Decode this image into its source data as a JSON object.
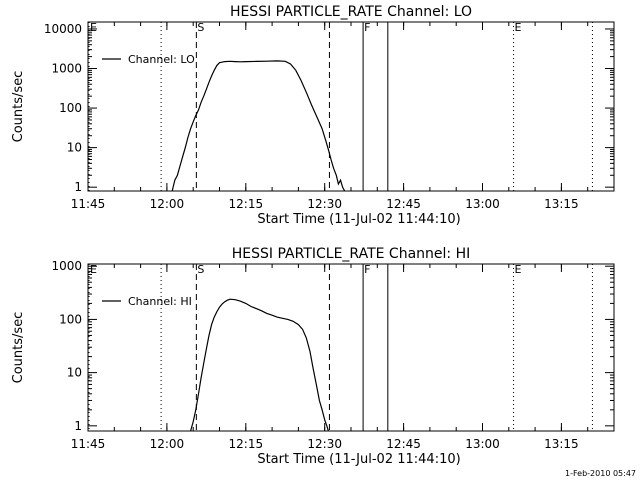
{
  "chart_data": [
    {
      "type": "line",
      "title": "HESSI PARTICLE_RATE Channel: LO",
      "xlabel": "Start Time (11-Jul-02 11:44:10)",
      "ylabel": "Counts/sec",
      "yscale": "log",
      "ylim": [
        0.8,
        15000
      ],
      "xlim": [
        705,
        805
      ],
      "x_unit": "minutes since 00:00 UT",
      "x_ticks": [
        {
          "v": 705,
          "label": "11:45"
        },
        {
          "v": 720,
          "label": "12:00"
        },
        {
          "v": 735,
          "label": "12:15"
        },
        {
          "v": 750,
          "label": "12:30"
        },
        {
          "v": 765,
          "label": "12:45"
        },
        {
          "v": 780,
          "label": "13:00"
        },
        {
          "v": 795,
          "label": "13:15"
        }
      ],
      "y_ticks": [
        {
          "v": 1,
          "label": "1"
        },
        {
          "v": 10,
          "label": "10"
        },
        {
          "v": 100,
          "label": "100"
        },
        {
          "v": 1000,
          "label": "1000"
        },
        {
          "v": 10000,
          "label": "10000"
        }
      ],
      "legend": {
        "label": "Channel: LO",
        "position": "top-left"
      },
      "markers": [
        {
          "x": 705.2,
          "style": "dotted",
          "label": "E"
        },
        {
          "x": 718.9,
          "style": "dotted",
          "label": ""
        },
        {
          "x": 725.6,
          "style": "dashed",
          "label": "S"
        },
        {
          "x": 750.9,
          "style": "dashed",
          "label": ""
        },
        {
          "x": 757.3,
          "style": "solid",
          "label": "F"
        },
        {
          "x": 762.0,
          "style": "solid",
          "label": ""
        },
        {
          "x": 785.9,
          "style": "dotted",
          "label": "E"
        },
        {
          "x": 800.9,
          "style": "dotted",
          "label": ""
        }
      ],
      "series": [
        {
          "name": "Channel: LO",
          "x": [
            721.0,
            721.5,
            722.0,
            722.5,
            723.0,
            723.5,
            724.0,
            724.5,
            725.0,
            725.5,
            726.0,
            726.5,
            727.0,
            727.5,
            728.0,
            728.5,
            729.0,
            729.5,
            730.0,
            731.0,
            732.0,
            733.0,
            734.0,
            735.0,
            737.0,
            739.0,
            741.0,
            742.5,
            743.5,
            744.5,
            745.5,
            746.5,
            747.5,
            748.5,
            749.5,
            750.2,
            750.8,
            751.2,
            751.7,
            752.2,
            752.6,
            753.0,
            753.4,
            753.8
          ],
          "y": [
            0.8,
            1.5,
            2.0,
            3.5,
            6.0,
            10.0,
            18,
            30,
            45,
            65,
            90,
            140,
            200,
            300,
            450,
            650,
            900,
            1200,
            1400,
            1500,
            1520,
            1500,
            1480,
            1500,
            1510,
            1530,
            1560,
            1520,
            1300,
            900,
            500,
            250,
            120,
            60,
            30,
            15,
            8,
            5,
            3,
            2,
            1.2,
            1.5,
            1.0,
            0.8
          ]
        }
      ]
    },
    {
      "type": "line",
      "title": "HESSI PARTICLE_RATE Channel: HI",
      "xlabel": "Start Time (11-Jul-02 11:44:10)",
      "ylabel": "Counts/sec",
      "yscale": "log",
      "ylim": [
        0.8,
        1100
      ],
      "xlim": [
        705,
        805
      ],
      "x_unit": "minutes since 00:00 UT",
      "x_ticks": [
        {
          "v": 705,
          "label": "11:45"
        },
        {
          "v": 720,
          "label": "12:00"
        },
        {
          "v": 735,
          "label": "12:15"
        },
        {
          "v": 750,
          "label": "12:30"
        },
        {
          "v": 765,
          "label": "12:45"
        },
        {
          "v": 780,
          "label": "13:00"
        },
        {
          "v": 795,
          "label": "13:15"
        }
      ],
      "y_ticks": [
        {
          "v": 1,
          "label": "1"
        },
        {
          "v": 10,
          "label": "10"
        },
        {
          "v": 100,
          "label": "100"
        },
        {
          "v": 1000,
          "label": "1000"
        }
      ],
      "legend": {
        "label": "Channel: HI",
        "position": "top-left"
      },
      "markers": [
        {
          "x": 705.2,
          "style": "dotted",
          "label": "E"
        },
        {
          "x": 718.9,
          "style": "dotted",
          "label": ""
        },
        {
          "x": 725.6,
          "style": "dashed",
          "label": "S"
        },
        {
          "x": 750.9,
          "style": "dashed",
          "label": ""
        },
        {
          "x": 757.3,
          "style": "solid",
          "label": "F"
        },
        {
          "x": 762.0,
          "style": "solid",
          "label": ""
        },
        {
          "x": 785.9,
          "style": "dotted",
          "label": "E"
        },
        {
          "x": 800.9,
          "style": "dotted",
          "label": ""
        }
      ],
      "series": [
        {
          "name": "Channel: HI",
          "x": [
            724.5,
            725.0,
            725.5,
            726.0,
            726.5,
            727.0,
            727.5,
            728.0,
            728.5,
            729.0,
            729.5,
            730.0,
            730.5,
            731.0,
            731.5,
            732.0,
            733.0,
            734.0,
            735.0,
            736.0,
            737.0,
            738.0,
            739.0,
            740.0,
            741.0,
            742.0,
            743.0,
            744.0,
            745.0,
            745.8,
            746.5,
            747.2,
            747.8,
            748.4,
            749.0,
            749.5,
            750.0,
            750.4,
            750.7
          ],
          "y": [
            0.8,
            1.2,
            2,
            4,
            8,
            15,
            28,
            50,
            80,
            110,
            140,
            170,
            195,
            215,
            230,
            240,
            235,
            220,
            200,
            175,
            160,
            145,
            130,
            120,
            110,
            105,
            100,
            92,
            80,
            65,
            45,
            25,
            12,
            6,
            3,
            2,
            1.3,
            1.0,
            0.8
          ]
        }
      ]
    }
  ],
  "footer": {
    "stamp": "1-Feb-2010 05:47"
  }
}
